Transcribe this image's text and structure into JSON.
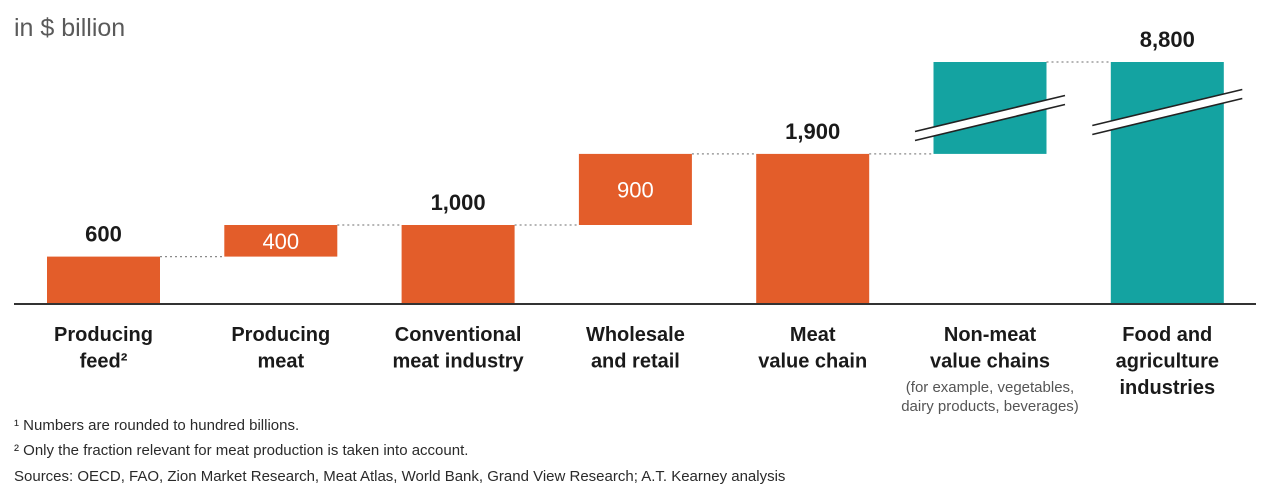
{
  "unit_label": "in $ billion",
  "colors": {
    "orange": "#e35d2a",
    "teal": "#14a3a1",
    "axis": "#333333",
    "connector": "#8a8a8a",
    "value_text": "#1a1a1a",
    "inner_text": "#ffffff",
    "category_text": "#1a1a1a",
    "sub_text": "#555555"
  },
  "chart_data": {
    "type": "bar",
    "subtype": "waterfall",
    "title": "",
    "xlabel": "",
    "ylabel": "in $ billion",
    "axis_break": "between 1,900 and 8,800 on the last two bars",
    "categories": [
      {
        "label_lines": [
          "Producing",
          "feed²"
        ],
        "sub_lines": []
      },
      {
        "label_lines": [
          "Producing",
          "meat"
        ],
        "sub_lines": []
      },
      {
        "label_lines": [
          "Conventional",
          "meat industry"
        ],
        "sub_lines": []
      },
      {
        "label_lines": [
          "Wholesale",
          "and retail"
        ],
        "sub_lines": []
      },
      {
        "label_lines": [
          "Meat",
          "value chain"
        ],
        "sub_lines": []
      },
      {
        "label_lines": [
          "Non-meat",
          "value chains"
        ],
        "sub_lines": [
          "(for example, vegetables,",
          "dairy products, beverages)"
        ]
      },
      {
        "label_lines": [
          "Food and",
          "agriculture",
          "industries"
        ],
        "sub_lines": []
      }
    ],
    "bars": [
      {
        "base": 0,
        "value": 600,
        "label": "600",
        "label_pos": "above",
        "color": "orange",
        "kind": "total"
      },
      {
        "base": 600,
        "value": 400,
        "label": "400",
        "label_pos": "inside",
        "color": "orange",
        "kind": "increment"
      },
      {
        "base": 0,
        "value": 1000,
        "label": "1,000",
        "label_pos": "above",
        "color": "orange",
        "kind": "total"
      },
      {
        "base": 1000,
        "value": 900,
        "label": "900",
        "label_pos": "inside",
        "color": "orange",
        "kind": "increment"
      },
      {
        "base": 0,
        "value": 1900,
        "label": "1,900",
        "label_pos": "above",
        "color": "orange",
        "kind": "total"
      },
      {
        "base": 1900,
        "value": 6900,
        "label": "",
        "label_pos": "none",
        "color": "teal",
        "kind": "increment",
        "broken": true
      },
      {
        "base": 0,
        "value": 8800,
        "label": "8,800",
        "label_pos": "above",
        "color": "teal",
        "kind": "total",
        "broken": true
      }
    ]
  },
  "footnotes": [
    "¹ Numbers are rounded to hundred billions.",
    "² Only the fraction relevant for meat production is taken into account.",
    "Sources: OECD, FAO, Zion Market Research, Meat Atlas, World Bank, Grand View Research; A.T. Kearney analysis"
  ]
}
